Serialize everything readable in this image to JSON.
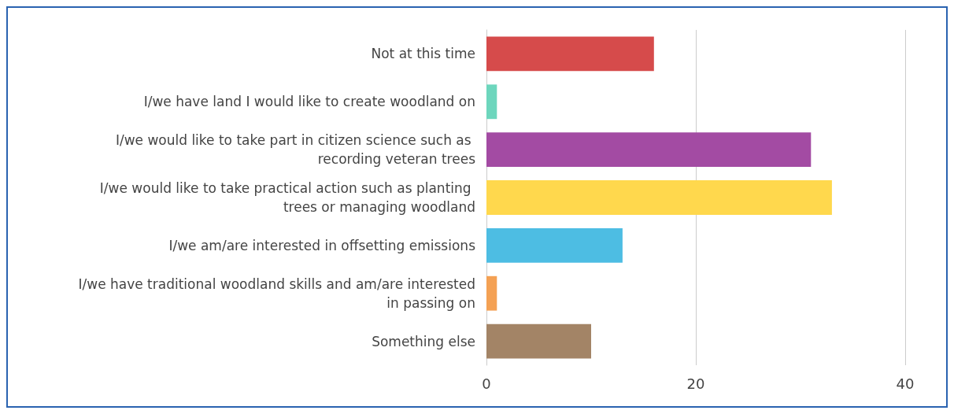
{
  "chart_data": {
    "type": "bar",
    "orientation": "horizontal",
    "categories": [
      "Not at this time",
      "I/we have land I would like to create woodland on",
      "I/we would like to take part in citizen science such as recording veteran trees",
      "I/we would like to take practical action such as planting trees or managing woodland",
      "I/we am/are interested in offsetting emissions",
      "I/we have traditional woodland skills and am/are interested in passing on",
      "Something else"
    ],
    "values": [
      16,
      1,
      31,
      33,
      13,
      1,
      10
    ],
    "colors": [
      "#d64b4b",
      "#6dd6bd",
      "#a34ba3",
      "#ffd84d",
      "#4dbde3",
      "#f4a154",
      "#a38466"
    ],
    "xlim": [
      0,
      40
    ],
    "xticks": [
      0,
      20,
      40
    ],
    "grid": "x"
  }
}
